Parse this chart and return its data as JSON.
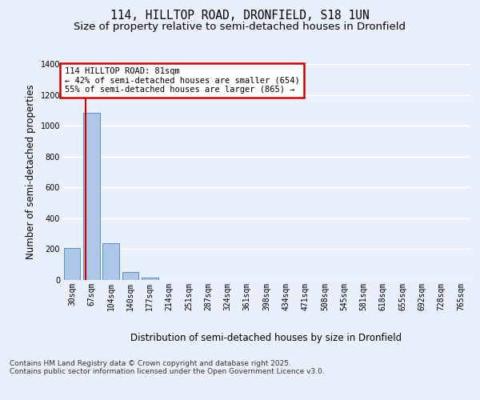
{
  "title_line1": "114, HILLTOP ROAD, DRONFIELD, S18 1UN",
  "title_line2": "Size of property relative to semi-detached houses in Dronfield",
  "xlabel": "Distribution of semi-detached houses by size in Dronfield",
  "ylabel": "Number of semi-detached properties",
  "categories": [
    "30sqm",
    "67sqm",
    "104sqm",
    "140sqm",
    "177sqm",
    "214sqm",
    "251sqm",
    "287sqm",
    "324sqm",
    "361sqm",
    "398sqm",
    "434sqm",
    "471sqm",
    "508sqm",
    "545sqm",
    "581sqm",
    "618sqm",
    "655sqm",
    "692sqm",
    "728sqm",
    "765sqm"
  ],
  "values": [
    210,
    1085,
    240,
    50,
    18,
    0,
    0,
    0,
    0,
    0,
    0,
    0,
    0,
    0,
    0,
    0,
    0,
    0,
    0,
    0,
    0
  ],
  "bar_color": "#aec6e8",
  "bar_edge_color": "#5a8fc0",
  "highlight_line_color": "#cc0000",
  "annotation_text": "114 HILLTOP ROAD: 81sqm\n← 42% of semi-detached houses are smaller (654)\n55% of semi-detached houses are larger (865) →",
  "annotation_box_color": "#cc0000",
  "ylim": [
    0,
    1400
  ],
  "yticks": [
    0,
    200,
    400,
    600,
    800,
    1000,
    1200,
    1400
  ],
  "bg_color": "#eaf0fb",
  "plot_bg_color": "#eaf0fb",
  "grid_color": "#ffffff",
  "footer_text": "Contains HM Land Registry data © Crown copyright and database right 2025.\nContains public sector information licensed under the Open Government Licence v3.0.",
  "title_fontsize": 10.5,
  "subtitle_fontsize": 9.5,
  "tick_fontsize": 7,
  "axis_label_fontsize": 8.5,
  "annotation_fontsize": 7.5,
  "footer_fontsize": 6.5
}
